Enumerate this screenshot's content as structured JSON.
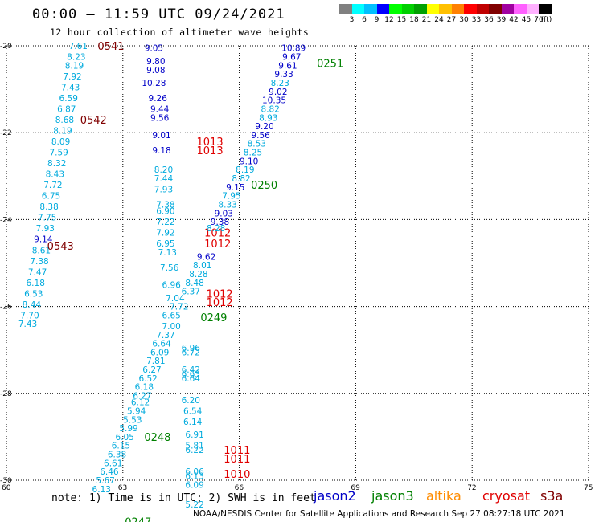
{
  "header": {
    "title": "00:00 – 11:59 UTC 09/24/2021",
    "subtitle": "12 hour collection of altimeter wave heights"
  },
  "legend": {
    "colors": [
      "#808080",
      "#00ffff",
      "#00c0ff",
      "#0000ff",
      "#00ff00",
      "#00d000",
      "#00a000",
      "#ffff00",
      "#ffc000",
      "#ff8000",
      "#ff0000",
      "#c00000",
      "#800000",
      "#a000a0",
      "#ff60ff",
      "#ffb0ff",
      "#000000"
    ],
    "labels": [
      "3",
      "6",
      "9",
      "12",
      "15",
      "18",
      "21",
      "24",
      "27",
      "30",
      "33",
      "36",
      "39",
      "42",
      "45",
      "70",
      "(ft)"
    ]
  },
  "axes": {
    "lon_labels": [
      "60",
      "63",
      "66",
      "69",
      "72",
      "75"
    ],
    "lat_labels": [
      "-20",
      "-22",
      "-24",
      "-26",
      "-28",
      "-30"
    ]
  },
  "footer": {
    "note": "note:  1) Time is in UTC; 2) SWH is in feet",
    "credit": "NOAA/NESDIS Center for Satellite Applications and Research   Sep 27 08:27:18 UTC 2021",
    "satellites": [
      {
        "name": "jason2",
        "color": "#0000c8"
      },
      {
        "name": "jason3",
        "color": "#008000"
      },
      {
        "name": "altika",
        "color": "#ff8c00"
      },
      {
        "name": "cryosat",
        "color": "#e00000"
      },
      {
        "name": "s3a",
        "color": "#800000"
      }
    ]
  },
  "tracks": [
    {
      "name": "track-0541-0543",
      "color": "#00aadd",
      "labels": [
        {
          "text": "0541",
          "lon": 62.35,
          "lat": -20.0,
          "color": "#800000"
        },
        {
          "text": "0542",
          "lon": 61.9,
          "lat": -21.7,
          "color": "#800000"
        },
        {
          "text": "0543",
          "lon": 61.05,
          "lat": -24.6,
          "color": "#800000"
        }
      ],
      "values": [
        {
          "v": "7.61",
          "lon": 61.85,
          "lat": -20.0
        },
        {
          "v": "8.23",
          "lon": 61.8,
          "lat": -20.25
        },
        {
          "v": "8.19",
          "lon": 61.75,
          "lat": -20.45
        },
        {
          "v": "7.92",
          "lon": 61.7,
          "lat": -20.7
        },
        {
          "v": "7.43",
          "lon": 61.65,
          "lat": -20.95
        },
        {
          "v": "6.59",
          "lon": 61.6,
          "lat": -21.2
        },
        {
          "v": "6.87",
          "lon": 61.55,
          "lat": -21.45
        },
        {
          "v": "8.68",
          "lon": 61.5,
          "lat": -21.7
        },
        {
          "v": "8.19",
          "lon": 61.45,
          "lat": -21.95
        },
        {
          "v": "8.09",
          "lon": 61.4,
          "lat": -22.2
        },
        {
          "v": "7.59",
          "lon": 61.35,
          "lat": -22.45
        },
        {
          "v": "8.32",
          "lon": 61.3,
          "lat": -22.7
        },
        {
          "v": "8.43",
          "lon": 61.25,
          "lat": -22.95
        },
        {
          "v": "7.72",
          "lon": 61.2,
          "lat": -23.2
        },
        {
          "v": "6.75",
          "lon": 61.15,
          "lat": -23.45
        },
        {
          "v": "8.38",
          "lon": 61.1,
          "lat": -23.7
        },
        {
          "v": "7.75",
          "lon": 61.05,
          "lat": -23.95
        },
        {
          "v": "7.93",
          "lon": 61.0,
          "lat": -24.2
        },
        {
          "v": "9.14",
          "lon": 60.95,
          "lat": -24.45,
          "color": "#0000c8"
        },
        {
          "v": "8.61",
          "lon": 60.9,
          "lat": -24.7
        },
        {
          "v": "7.38",
          "lon": 60.85,
          "lat": -24.95
        },
        {
          "v": "7.47",
          "lon": 60.8,
          "lat": -25.2
        },
        {
          "v": "6.18",
          "lon": 60.75,
          "lat": -25.45
        },
        {
          "v": "6.53",
          "lon": 60.7,
          "lat": -25.7
        },
        {
          "v": "8.44",
          "lon": 60.65,
          "lat": -25.95
        },
        {
          "v": "7.70",
          "lon": 60.6,
          "lat": -26.2
        },
        {
          "v": "7.43",
          "lon": 60.55,
          "lat": -26.4
        }
      ]
    },
    {
      "name": "track-1013-1010",
      "color": "#00aadd",
      "labels": [
        {
          "text": "1013",
          "lon": 64.9,
          "lat": -22.2,
          "color": "#e00000"
        },
        {
          "text": "1013",
          "lon": 64.9,
          "lat": -22.4,
          "color": "#e00000"
        },
        {
          "text": "1012",
          "lon": 65.1,
          "lat": -24.3,
          "color": "#e00000"
        },
        {
          "text": "1012",
          "lon": 65.1,
          "lat": -24.55,
          "color": "#e00000"
        },
        {
          "text": "1012",
          "lon": 65.15,
          "lat": -25.7,
          "color": "#e00000"
        },
        {
          "text": "1012",
          "lon": 65.15,
          "lat": -25.9,
          "color": "#e00000"
        },
        {
          "text": "1011",
          "lon": 65.6,
          "lat": -29.3,
          "color": "#e00000"
        },
        {
          "text": "1011",
          "lon": 65.6,
          "lat": -29.5,
          "color": "#e00000"
        },
        {
          "text": "1010",
          "lon": 65.6,
          "lat": -29.85,
          "color": "#e00000"
        }
      ],
      "values": [
        {
          "v": "9.05",
          "lon": 63.8,
          "lat": -20.05,
          "color": "#0000c8"
        },
        {
          "v": "9.80",
          "lon": 63.85,
          "lat": -20.35,
          "color": "#0000c8"
        },
        {
          "v": "9.08",
          "lon": 63.85,
          "lat": -20.55,
          "color": "#0000c8"
        },
        {
          "v": "10.28",
          "lon": 63.8,
          "lat": -20.85,
          "color": "#0000c8"
        },
        {
          "v": "9.26",
          "lon": 63.9,
          "lat": -21.2,
          "color": "#0000c8"
        },
        {
          "v": "9.44",
          "lon": 63.95,
          "lat": -21.45,
          "color": "#0000c8"
        },
        {
          "v": "9.56",
          "lon": 63.95,
          "lat": -21.65,
          "color": "#0000c8"
        },
        {
          "v": "9.01",
          "lon": 64.0,
          "lat": -22.05,
          "color": "#0000c8"
        },
        {
          "v": "9.18",
          "lon": 64.0,
          "lat": -22.4,
          "color": "#0000c8"
        },
        {
          "v": "8.20",
          "lon": 64.05,
          "lat": -22.85
        },
        {
          "v": "7.44",
          "lon": 64.05,
          "lat": -23.05
        },
        {
          "v": "7.93",
          "lon": 64.05,
          "lat": -23.3
        },
        {
          "v": "7.38",
          "lon": 64.1,
          "lat": -23.65
        },
        {
          "v": "6.90",
          "lon": 64.1,
          "lat": -23.8
        },
        {
          "v": "7.22",
          "lon": 64.1,
          "lat": -24.05
        },
        {
          "v": "7.92",
          "lon": 64.1,
          "lat": -24.3
        },
        {
          "v": "6.95",
          "lon": 64.1,
          "lat": -24.55
        },
        {
          "v": "7.13",
          "lon": 64.15,
          "lat": -24.75
        },
        {
          "v": "7.56",
          "lon": 64.2,
          "lat": -25.1
        },
        {
          "v": "6.96",
          "lon": 64.25,
          "lat": -25.5
        },
        {
          "v": "7.04",
          "lon": 64.35,
          "lat": -25.8
        },
        {
          "v": "7.72",
          "lon": 64.45,
          "lat": -26.0
        },
        {
          "v": "6.65",
          "lon": 64.25,
          "lat": -26.2
        },
        {
          "v": "7.00",
          "lon": 64.25,
          "lat": -26.45
        },
        {
          "v": "7.37",
          "lon": 64.1,
          "lat": -26.65
        },
        {
          "v": "6.64",
          "lon": 64.0,
          "lat": -26.85
        },
        {
          "v": "6.09",
          "lon": 63.95,
          "lat": -27.05
        },
        {
          "v": "7.81",
          "lon": 63.85,
          "lat": -27.25
        },
        {
          "v": "6.27",
          "lon": 63.75,
          "lat": -27.45
        },
        {
          "v": "6.52",
          "lon": 63.65,
          "lat": -27.65
        },
        {
          "v": "6.18",
          "lon": 63.55,
          "lat": -27.85
        },
        {
          "v": "6.27",
          "lon": 63.5,
          "lat": -28.05
        },
        {
          "v": "6.12",
          "lon": 63.45,
          "lat": -28.2
        },
        {
          "v": "5.94",
          "lon": 63.35,
          "lat": -28.4
        },
        {
          "v": "5.53",
          "lon": 63.25,
          "lat": -28.6
        },
        {
          "v": "5.99",
          "lon": 63.15,
          "lat": -28.8
        },
        {
          "v": "6.05",
          "lon": 63.05,
          "lat": -29.0
        },
        {
          "v": "6.15",
          "lon": 62.95,
          "lat": -29.2
        },
        {
          "v": "6.38",
          "lon": 62.85,
          "lat": -29.4
        },
        {
          "v": "6.61",
          "lon": 62.75,
          "lat": -29.6
        },
        {
          "v": "6.46",
          "lon": 62.65,
          "lat": -29.8
        },
        {
          "v": "5.67",
          "lon": 62.55,
          "lat": -30.0
        },
        {
          "v": "6.13",
          "lon": 62.45,
          "lat": -30.2
        }
      ]
    },
    {
      "name": "track-cryosat-east",
      "color": "#00aadd",
      "labels": [],
      "values": [
        {
          "v": "6.96",
          "lon": 64.75,
          "lat": -26.95
        },
        {
          "v": "6.72",
          "lon": 64.75,
          "lat": -27.05
        },
        {
          "v": "6.42",
          "lon": 64.75,
          "lat": -27.45
        },
        {
          "v": "6.63",
          "lon": 64.75,
          "lat": -27.55
        },
        {
          "v": "6.64",
          "lon": 64.75,
          "lat": -27.65
        },
        {
          "v": "6.20",
          "lon": 64.75,
          "lat": -28.15
        },
        {
          "v": "6.54",
          "lon": 64.8,
          "lat": -28.4
        },
        {
          "v": "6.14",
          "lon": 64.8,
          "lat": -28.65
        },
        {
          "v": "6.91",
          "lon": 64.85,
          "lat": -28.95
        },
        {
          "v": "5.81",
          "lon": 64.85,
          "lat": -29.2
        },
        {
          "v": "6.22",
          "lon": 64.85,
          "lat": -29.3
        },
        {
          "v": "6.06",
          "lon": 64.85,
          "lat": -29.8
        },
        {
          "v": "6.13",
          "lon": 64.85,
          "lat": -29.9
        },
        {
          "v": "6.09",
          "lon": 64.85,
          "lat": -30.1
        },
        {
          "v": "5.22",
          "lon": 64.85,
          "lat": -30.55
        }
      ]
    },
    {
      "name": "track-0251-0248",
      "color": "#00aadd",
      "labels": [
        {
          "text": "0251",
          "lon": 68.0,
          "lat": -20.4,
          "color": "#008000"
        },
        {
          "text": "0250",
          "lon": 66.3,
          "lat": -23.2,
          "color": "#008000"
        },
        {
          "text": "0249",
          "lon": 65.0,
          "lat": -26.25,
          "color": "#008000"
        },
        {
          "text": "0248",
          "lon": 63.55,
          "lat": -29.0,
          "color": "#008000"
        },
        {
          "text": "0247",
          "lon": 63.05,
          "lat": -30.95,
          "color": "#008000"
        }
      ],
      "values": [
        {
          "v": "10.89",
          "lon": 67.4,
          "lat": -20.05,
          "color": "#0000c8"
        },
        {
          "v": "9.67",
          "lon": 67.35,
          "lat": -20.25,
          "color": "#0000c8"
        },
        {
          "v": "9.61",
          "lon": 67.25,
          "lat": -20.45,
          "color": "#0000c8"
        },
        {
          "v": "9.33",
          "lon": 67.15,
          "lat": -20.65,
          "color": "#0000c8"
        },
        {
          "v": "8.23",
          "lon": 67.05,
          "lat": -20.85
        },
        {
          "v": "9.02",
          "lon": 67.0,
          "lat": -21.05,
          "color": "#0000c8"
        },
        {
          "v": "10.35",
          "lon": 66.9,
          "lat": -21.25,
          "color": "#0000c8"
        },
        {
          "v": "8.82",
          "lon": 66.8,
          "lat": -21.45
        },
        {
          "v": "8.93",
          "lon": 66.75,
          "lat": -21.65
        },
        {
          "v": "9.20",
          "lon": 66.65,
          "lat": -21.85,
          "color": "#0000c8"
        },
        {
          "v": "9.56",
          "lon": 66.55,
          "lat": -22.05,
          "color": "#0000c8"
        },
        {
          "v": "8.53",
          "lon": 66.45,
          "lat": -22.25
        },
        {
          "v": "8.25",
          "lon": 66.35,
          "lat": -22.45
        },
        {
          "v": "9.10",
          "lon": 66.25,
          "lat": -22.65,
          "color": "#0000c8"
        },
        {
          "v": "8.19",
          "lon": 66.15,
          "lat": -22.85
        },
        {
          "v": "8.82",
          "lon": 66.05,
          "lat": -23.05
        },
        {
          "v": "9.15",
          "lon": 65.9,
          "lat": -23.25,
          "color": "#0000c8"
        },
        {
          "v": "7.95",
          "lon": 65.8,
          "lat": -23.45
        },
        {
          "v": "8.33",
          "lon": 65.7,
          "lat": -23.65
        },
        {
          "v": "9.03",
          "lon": 65.6,
          "lat": -23.85,
          "color": "#0000c8"
        },
        {
          "v": "9.38",
          "lon": 65.5,
          "lat": -24.05,
          "color": "#0000c8"
        },
        {
          "v": "8.28",
          "lon": 65.4,
          "lat": -24.2
        },
        {
          "v": "9.62",
          "lon": 65.15,
          "lat": -24.85,
          "color": "#0000c8"
        },
        {
          "v": "8.01",
          "lon": 65.05,
          "lat": -25.05
        },
        {
          "v": "8.28",
          "lon": 64.95,
          "lat": -25.25
        },
        {
          "v": "8.48",
          "lon": 64.85,
          "lat": -25.45
        },
        {
          "v": "6.37",
          "lon": 64.75,
          "lat": -25.65
        }
      ]
    }
  ]
}
